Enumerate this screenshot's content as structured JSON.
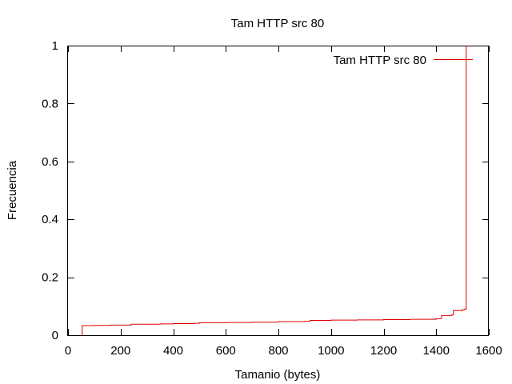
{
  "chart_data": {
    "type": "line",
    "title": "Tam HTTP src 80",
    "xlabel": "Tamanio (bytes)",
    "ylabel": "Frecuencia",
    "xlim": [
      0,
      1600
    ],
    "ylim": [
      0,
      1
    ],
    "x_ticks": [
      0,
      200,
      400,
      600,
      800,
      1000,
      1200,
      1400,
      1600
    ],
    "y_ticks": [
      0,
      0.2,
      0.4,
      0.6,
      0.8,
      1
    ],
    "y_tick_labels": [
      "0",
      "0.2",
      "0.4",
      "0.6",
      "0.8",
      "1"
    ],
    "grid": false,
    "legend_position": "top-right",
    "series": [
      {
        "name": "Tam HTTP src 80",
        "color": "#e00000",
        "step": true,
        "x": [
          54,
          54,
          60,
          100,
          160,
          240,
          350,
          400,
          480,
          500,
          600,
          700,
          800,
          900,
          920,
          1000,
          1100,
          1200,
          1300,
          1400,
          1420,
          1460,
          1465,
          1500,
          1508,
          1514
        ],
        "y": [
          0,
          0.033,
          0.033,
          0.034,
          0.035,
          0.038,
          0.039,
          0.04,
          0.041,
          0.043,
          0.044,
          0.045,
          0.047,
          0.048,
          0.051,
          0.052,
          0.053,
          0.054,
          0.055,
          0.057,
          0.068,
          0.07,
          0.085,
          0.088,
          0.09,
          1.0
        ]
      }
    ]
  }
}
